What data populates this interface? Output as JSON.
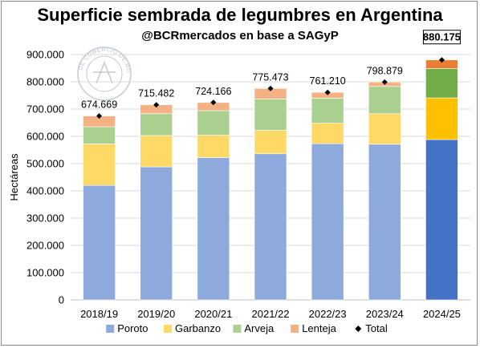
{
  "chart_data": {
    "type": "bar",
    "stacked": true,
    "title": "Superficie sembrada de legumbres en Argentina",
    "subtitle": "@BCRmercados en base a SAGyP",
    "ylabel": "Hectáreas",
    "ylim": [
      0,
      900000
    ],
    "yticks": [
      0,
      100000,
      200000,
      300000,
      400000,
      500000,
      600000,
      700000,
      800000,
      900000
    ],
    "ytick_labels": [
      "0",
      "100.000",
      "200.000",
      "300.000",
      "400.000",
      "500.000",
      "600.000",
      "700.000",
      "800.000",
      "900.000"
    ],
    "grid": true,
    "legend_position": "bottom",
    "categories": [
      "2018/19",
      "2019/20",
      "2020/21",
      "2021/22",
      "2022/23",
      "2023/24",
      "2024/25"
    ],
    "series": [
      {
        "name": "Poroto",
        "color": "#8EA9DB",
        "highlight_color": "#4472C4",
        "values": [
          420000,
          488000,
          522000,
          536000,
          573000,
          571000,
          588000
        ]
      },
      {
        "name": "Garbanzo",
        "color": "#FFD966",
        "highlight_color": "#FFC000",
        "values": [
          152000,
          115000,
          82000,
          86000,
          75000,
          112000,
          153000
        ]
      },
      {
        "name": "Arveja",
        "color": "#A9D08E",
        "highlight_color": "#70AD47",
        "values": [
          63000,
          80000,
          90000,
          115000,
          92000,
          100000,
          108000
        ]
      },
      {
        "name": "Lenteja",
        "color": "#F4B183",
        "highlight_color": "#ED7D31",
        "values": [
          39669,
          32482,
          30166,
          38473,
          21210,
          15879,
          31175
        ]
      }
    ],
    "totals": {
      "name": "Total",
      "values": [
        674669,
        715482,
        724166,
        775473,
        761210,
        798879,
        880175
      ],
      "labels": [
        "674.669",
        "715.482",
        "724.166",
        "775.473",
        "761.210",
        "798.879",
        "880.175"
      ]
    },
    "highlighted_category": "2024/25",
    "watermark_text": "BOLSA DE COMERCIO DE ROSARIO"
  }
}
